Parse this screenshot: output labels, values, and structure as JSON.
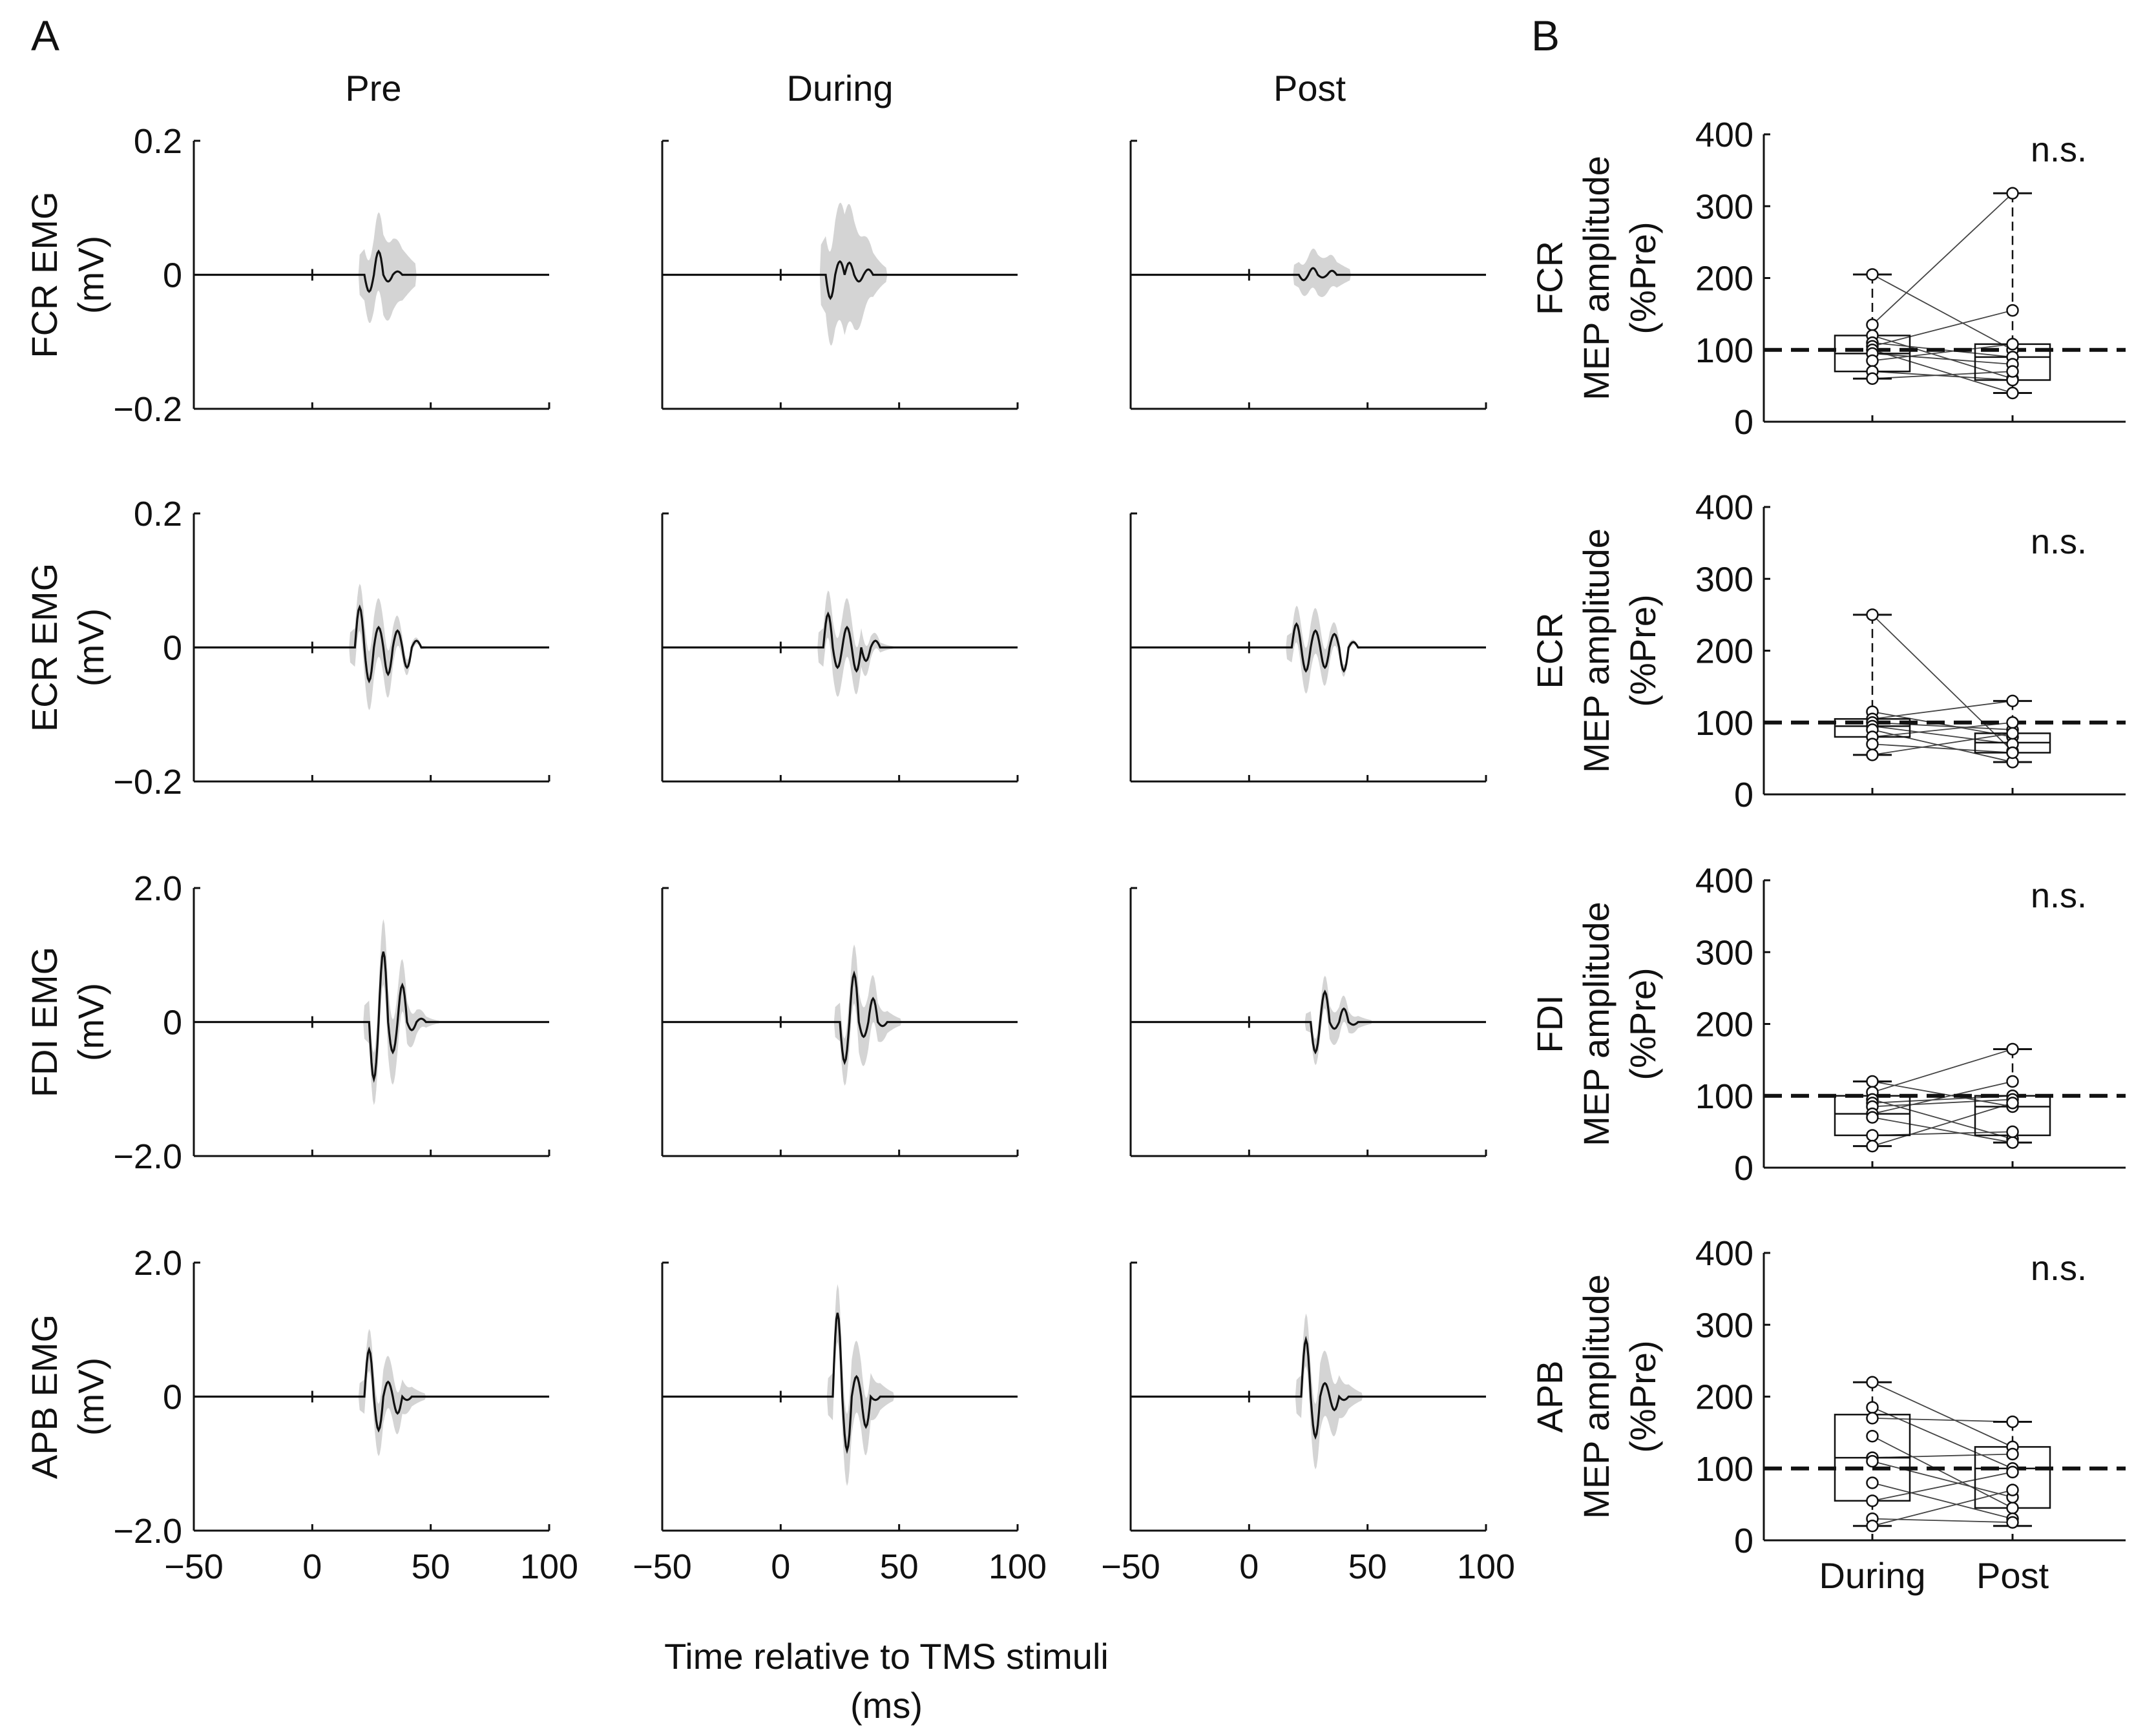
{
  "figure": {
    "panel_a_letter": "A",
    "panel_b_letter": "B",
    "columns": [
      "Pre",
      "During",
      "Post"
    ],
    "xlabel_line1": "Time relative to TMS stimuli",
    "xlabel_line2": "(ms)"
  },
  "chart_data": [
    {
      "type": "line",
      "panel": "A",
      "description_note": "Averaged MEP waveforms (black mean trace, grey band = variability) per muscle and condition",
      "x": {
        "min": -50,
        "max": 100,
        "ticks": [
          -50,
          0,
          50,
          100
        ],
        "tick_labels": [
          "−50",
          "0",
          "50",
          "100"
        ]
      },
      "conditions": [
        "Pre",
        "During",
        "Post"
      ],
      "muscles": [
        {
          "name": "FCR",
          "ylabel_line1": "FCR EMG",
          "ylabel_line2": "(mV)",
          "ylim": [
            -0.2,
            0.2
          ],
          "yticks": [
            -0.2,
            0,
            0.2
          ],
          "ytick_labels": [
            "−0.2",
            "0",
            "0.2"
          ],
          "traces": [
            {
              "condition": "Pre",
              "onset": 22,
              "peaks": [
                -0.025,
                0.035,
                -0.01,
                0.005
              ],
              "band": 0.06
            },
            {
              "condition": "During",
              "onset": 19,
              "peaks": [
                -0.035,
                0.02,
                0.018,
                -0.01,
                0.008
              ],
              "band": 0.09
            },
            {
              "condition": "Post",
              "onset": 21,
              "peaks": [
                -0.008,
                0.01,
                -0.004,
                0.006
              ],
              "band": 0.03
            }
          ]
        },
        {
          "name": "ECR",
          "ylabel_line1": "ECR EMG",
          "ylabel_line2": "(mV)",
          "ylim": [
            -0.2,
            0.2
          ],
          "yticks": [
            -0.2,
            0,
            0.2
          ],
          "ytick_labels": [
            "−0.2",
            "0",
            "0.2"
          ],
          "traces": [
            {
              "condition": "Pre",
              "onset": 18,
              "peaks": [
                0.06,
                -0.05,
                0.03,
                -0.04,
                0.025,
                -0.03,
                0.01
              ],
              "band": 0.045
            },
            {
              "condition": "During",
              "onset": 18,
              "peaks": [
                0.05,
                -0.03,
                0.03,
                -0.035,
                -0.02,
                0.01
              ],
              "band": 0.045
            },
            {
              "condition": "Post",
              "onset": 18,
              "peaks": [
                0.035,
                -0.035,
                0.025,
                -0.03,
                0.02,
                -0.035,
                0.008
              ],
              "band": 0.035
            }
          ]
        },
        {
          "name": "FDI",
          "ylabel_line1": "FDI EMG",
          "ylabel_line2": "(mV)",
          "ylim": [
            -2.0,
            2.0
          ],
          "yticks": [
            -2.0,
            0,
            2.0
          ],
          "ytick_labels": [
            "−2.0",
            "0",
            "2.0"
          ],
          "traces": [
            {
              "condition": "Pre",
              "onset": 24,
              "peaks": [
                -0.85,
                1.05,
                -0.45,
                0.55,
                -0.12,
                0.05
              ],
              "band": 0.5
            },
            {
              "condition": "During",
              "onset": 25,
              "peaks": [
                -0.6,
                0.72,
                -0.22,
                0.35,
                -0.06
              ],
              "band": 0.45
            },
            {
              "condition": "Post",
              "onset": 26,
              "peaks": [
                -0.45,
                0.45,
                -0.1,
                0.2,
                -0.04
              ],
              "band": 0.25
            }
          ]
        },
        {
          "name": "APB",
          "ylabel_line1": "APB EMG",
          "ylabel_line2": "(mV)",
          "ylim": [
            -2.0,
            2.0
          ],
          "yticks": [
            -2.0,
            0,
            2.0
          ],
          "ytick_labels": [
            "−2.0",
            "0",
            "2.0"
          ],
          "traces": [
            {
              "condition": "Pre",
              "onset": 22,
              "peaks": [
                0.7,
                -0.5,
                0.22,
                -0.25,
                -0.05
              ],
              "band": 0.4
            },
            {
              "condition": "During",
              "onset": 22,
              "peaks": [
                1.25,
                -0.8,
                0.3,
                -0.45,
                -0.05
              ],
              "band": 0.55
            },
            {
              "condition": "Post",
              "onset": 22,
              "peaks": [
                0.85,
                -0.6,
                0.2,
                -0.2,
                -0.05
              ],
              "band": 0.5
            }
          ]
        }
      ]
    },
    {
      "type": "box",
      "panel": "B",
      "description_note": "MEP amplitude relative to Pre, individual subjects connected between During and Post",
      "categories": [
        "During",
        "Post"
      ],
      "ylim": [
        0,
        400
      ],
      "yticks": [
        0,
        100,
        200,
        300,
        400
      ],
      "ytick_labels": [
        "0",
        "100",
        "200",
        "300",
        "400"
      ],
      "reference_line": 100,
      "ylabel_line2": "MEP amplitude",
      "ylabel_line3": "(%Pre)",
      "muscles": [
        {
          "name": "FCR",
          "significance": "n.s.",
          "boxes": [
            {
              "category": "During",
              "whisker_low": 60,
              "q1": 70,
              "median": 95,
              "q3": 120,
              "whisker_high": 205
            },
            {
              "category": "Post",
              "whisker_low": 40,
              "q1": 58,
              "median": 90,
              "q3": 108,
              "whisker_high": 318
            }
          ],
          "subjects_during": [
            205,
            135,
            120,
            110,
            105,
            100,
            95,
            85,
            70,
            60
          ],
          "subjects_post": [
            100,
            318,
            60,
            90,
            155,
            40,
            80,
            108,
            58,
            70
          ]
        },
        {
          "name": "ECR",
          "significance": "n.s.",
          "boxes": [
            {
              "category": "During",
              "whisker_low": 55,
              "q1": 80,
              "median": 95,
              "q3": 105,
              "whisker_high": 250
            },
            {
              "category": "Post",
              "whisker_low": 45,
              "q1": 58,
              "median": 72,
              "q3": 85,
              "whisker_high": 130
            }
          ],
          "subjects_during": [
            250,
            115,
            105,
            100,
            95,
            90,
            80,
            70,
            55
          ],
          "subjects_post": [
            60,
            80,
            130,
            90,
            70,
            45,
            100,
            58,
            85
          ]
        },
        {
          "name": "FDI",
          "significance": "n.s.",
          "boxes": [
            {
              "category": "During",
              "whisker_low": 30,
              "q1": 45,
              "median": 75,
              "q3": 100,
              "whisker_high": 120
            },
            {
              "category": "Post",
              "whisker_low": 35,
              "q1": 45,
              "median": 85,
              "q3": 100,
              "whisker_high": 165
            }
          ],
          "subjects_during": [
            120,
            105,
            95,
            90,
            85,
            75,
            70,
            45,
            30
          ],
          "subjects_post": [
            85,
            165,
            40,
            100,
            95,
            120,
            35,
            50,
            90
          ]
        },
        {
          "name": "APB",
          "significance": "n.s.",
          "boxes": [
            {
              "category": "During",
              "whisker_low": 20,
              "q1": 55,
              "median": 115,
              "q3": 175,
              "whisker_high": 220
            },
            {
              "category": "Post",
              "whisker_low": 20,
              "q1": 45,
              "median": 100,
              "q3": 130,
              "whisker_high": 165
            }
          ],
          "subjects_during": [
            220,
            185,
            170,
            145,
            115,
            110,
            80,
            55,
            30,
            20
          ],
          "subjects_post": [
            130,
            100,
            165,
            45,
            120,
            60,
            30,
            95,
            25,
            70
          ]
        }
      ]
    }
  ]
}
